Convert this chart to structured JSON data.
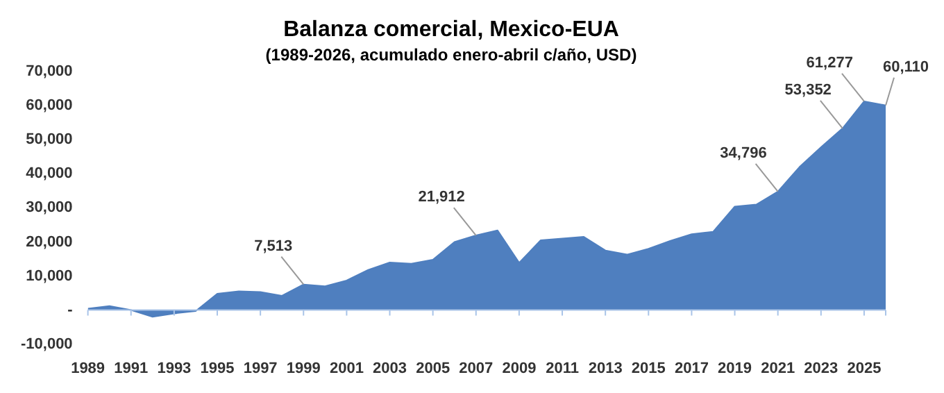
{
  "chart_data": {
    "type": "area",
    "title": "Balanza comercial, Mexico-EUA",
    "subtitle": "(1989-2026, acumulado enero-abril c/año, USD)",
    "x": [
      1989,
      1990,
      1991,
      1992,
      1993,
      1994,
      1995,
      1996,
      1997,
      1998,
      1999,
      2000,
      2001,
      2002,
      2003,
      2004,
      2005,
      2006,
      2007,
      2008,
      2009,
      2010,
      2011,
      2012,
      2013,
      2014,
      2015,
      2016,
      2017,
      2018,
      2019,
      2020,
      2021,
      2022,
      2023,
      2024,
      2025,
      2026
    ],
    "values": [
      400,
      1200,
      0,
      -2000,
      -1000,
      -300,
      4800,
      5500,
      5300,
      4200,
      7513,
      7000,
      8700,
      11800,
      14000,
      13600,
      14800,
      20000,
      21912,
      23400,
      13900,
      20500,
      21000,
      21500,
      17500,
      16300,
      18000,
      20300,
      22300,
      23000,
      30400,
      31000,
      34796,
      42000,
      47800,
      53352,
      61277,
      60110
    ],
    "value_labels": [
      null,
      null,
      null,
      null,
      null,
      null,
      null,
      null,
      null,
      null,
      "7,513",
      null,
      null,
      null,
      null,
      null,
      null,
      null,
      "21,912",
      null,
      null,
      null,
      null,
      null,
      null,
      null,
      null,
      null,
      null,
      null,
      null,
      null,
      "34,796",
      null,
      null,
      "53,352",
      "61,277",
      "60,110"
    ],
    "color": "#4f7fbf",
    "xlim": [
      1989,
      2026
    ],
    "xticks": [
      1989,
      1991,
      1993,
      1995,
      1997,
      1999,
      2001,
      2003,
      2005,
      2007,
      2009,
      2011,
      2013,
      2015,
      2017,
      2019,
      2021,
      2023,
      2025
    ],
    "ylim": [
      -10000,
      70000
    ],
    "yticks": [
      {
        "value": -10000,
        "label": "-10,000"
      },
      {
        "value": 0,
        "label": "-"
      },
      {
        "value": 10000,
        "label": "10,000"
      },
      {
        "value": 20000,
        "label": "20,000"
      },
      {
        "value": 30000,
        "label": "30,000"
      },
      {
        "value": 40000,
        "label": "40,000"
      },
      {
        "value": 50000,
        "label": "50,000"
      },
      {
        "value": 60000,
        "label": "60,000"
      },
      {
        "value": 70000,
        "label": "70,000"
      }
    ],
    "ref_lines": [
      {
        "axis": "y",
        "value": 0,
        "color": "#a9c4e8"
      }
    ],
    "grid": false,
    "legend": false
  }
}
